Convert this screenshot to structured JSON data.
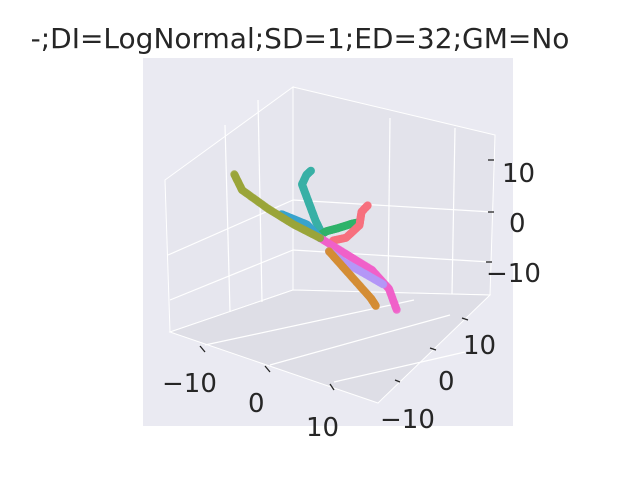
{
  "chart_data": {
    "type": "scatter",
    "projection": "3d",
    "title": "-;DI=LogNormal;SD=1;ED=32;GM=No",
    "xlabel": "",
    "ylabel": "",
    "zlabel": "",
    "x_ticks": [
      "−10",
      "0",
      "10"
    ],
    "y_ticks": [
      "10",
      "0",
      "−10"
    ],
    "z_ticks": [
      "10",
      "0",
      "−10"
    ],
    "grid": true,
    "background": "#eaeaf2",
    "series": [
      {
        "color": "#3ab0a6",
        "points": [
          [
            -1,
            0,
            12
          ],
          [
            -1.5,
            0,
            11
          ],
          [
            -2,
            0,
            9
          ],
          [
            -1.5,
            0,
            7
          ],
          [
            -1,
            0,
            5
          ],
          [
            -0.5,
            0,
            3
          ],
          [
            0,
            0,
            1.5
          ],
          [
            0,
            0,
            0.5
          ]
        ]
      },
      {
        "color": "#2fb36a",
        "points": [
          [
            0,
            0,
            0.5
          ],
          [
            1,
            0.5,
            2
          ],
          [
            2.5,
            1,
            3.5
          ],
          [
            4,
            1,
            5
          ],
          [
            5,
            1.5,
            6
          ]
        ]
      },
      {
        "color": "#f7707e",
        "points": [
          [
            2,
            1,
            1
          ],
          [
            4,
            2,
            3
          ],
          [
            5.5,
            2,
            6
          ],
          [
            6,
            2.5,
            9
          ],
          [
            7,
            3,
            11
          ]
        ]
      },
      {
        "color": "#f060c9",
        "points": [
          [
            0,
            0,
            0
          ],
          [
            4,
            2,
            0
          ],
          [
            8,
            4,
            0
          ],
          [
            11,
            6,
            -1
          ],
          [
            13,
            8,
            -3
          ]
        ]
      },
      {
        "color": "#38a3cc",
        "points": [
          [
            0,
            0,
            0
          ],
          [
            -2,
            -1,
            1
          ],
          [
            -4,
            -2,
            0.5
          ],
          [
            -6,
            -3,
            0
          ]
        ]
      },
      {
        "color": "#9aa43a",
        "points": [
          [
            0,
            0,
            0
          ],
          [
            -4,
            -2,
            -0.5
          ],
          [
            -8,
            -4,
            -0.5
          ],
          [
            -12,
            -6,
            0
          ],
          [
            -14,
            -8,
            1
          ]
        ]
      },
      {
        "color": "#b497f7",
        "points": [
          [
            1,
            0,
            -2
          ],
          [
            2,
            -1,
            -4
          ],
          [
            4,
            -2,
            -6
          ],
          [
            6,
            -2,
            -7
          ]
        ]
      },
      {
        "color": "#d48d35",
        "points": [
          [
            1,
            0,
            -2
          ],
          [
            2,
            -1,
            -5
          ],
          [
            3,
            -2,
            -8
          ],
          [
            4,
            -3,
            -11
          ],
          [
            4,
            -4,
            -13
          ]
        ]
      }
    ]
  }
}
